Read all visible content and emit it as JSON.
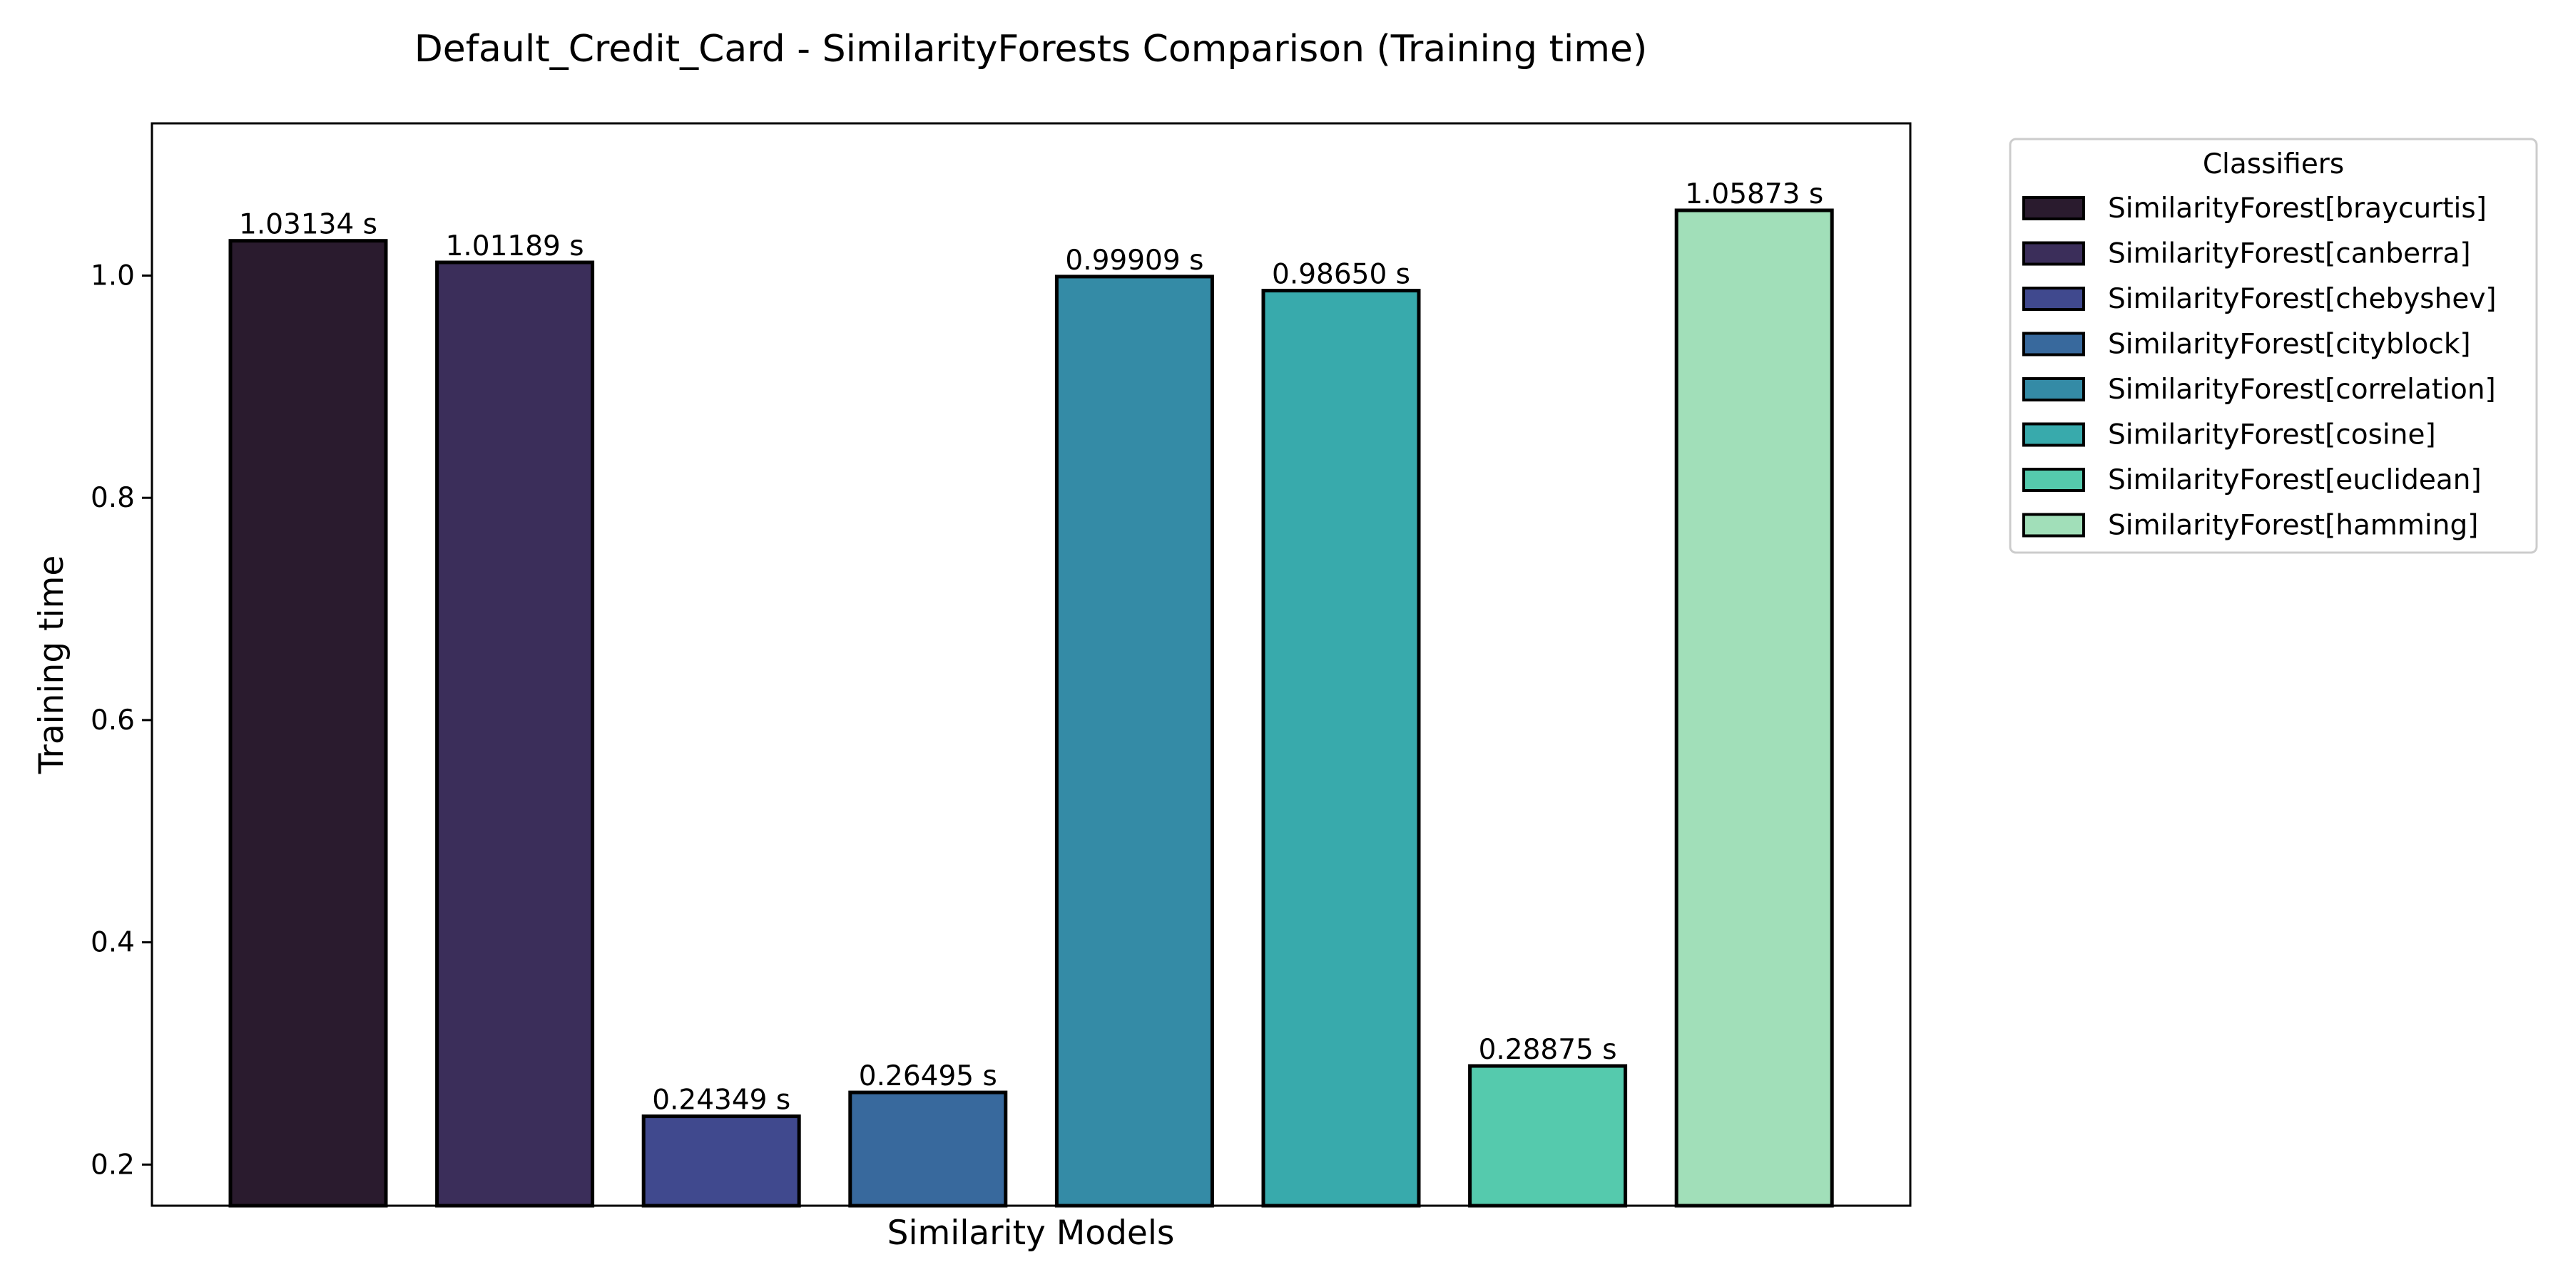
{
  "chart_data": {
    "type": "bar",
    "title": "Default_Credit_Card - SimilarityForests Comparison (Training time)",
    "xlabel": "Similarity Models",
    "ylabel": "Training time",
    "ylim": [
      0.163,
      1.137
    ],
    "yticks": [
      0.2,
      0.4,
      0.6,
      0.8,
      1.0
    ],
    "ytick_labels": [
      "0.2",
      "0.4",
      "0.6",
      "0.8",
      "1.0"
    ],
    "grid": false,
    "legend": {
      "title": "Classifiers",
      "placement": "outside-right"
    },
    "series": [
      {
        "name": "SimilarityForest[braycurtis]",
        "value": 1.03134,
        "label": "1.03134 s",
        "color": "#2a1b2e"
      },
      {
        "name": "SimilarityForest[canberra]",
        "value": 1.01189,
        "label": "1.01189 s",
        "color": "#3b2e5a"
      },
      {
        "name": "SimilarityForest[chebyshev]",
        "value": 0.24349,
        "label": "0.24349 s",
        "color": "#40498e"
      },
      {
        "name": "SimilarityForest[cityblock]",
        "value": 0.26495,
        "label": "0.26495 s",
        "color": "#38699d"
      },
      {
        "name": "SimilarityForest[correlation]",
        "value": 0.99909,
        "label": "0.99909 s",
        "color": "#348ba6"
      },
      {
        "name": "SimilarityForest[cosine]",
        "value": 0.9865,
        "label": "0.98650 s",
        "color": "#38aaac"
      },
      {
        "name": "SimilarityForest[euclidean]",
        "value": 0.28875,
        "label": "0.28875 s",
        "color": "#55caad"
      },
      {
        "name": "SimilarityForest[hamming]",
        "value": 1.05873,
        "label": "1.05873 s",
        "color": "#a1dfb9"
      }
    ]
  }
}
